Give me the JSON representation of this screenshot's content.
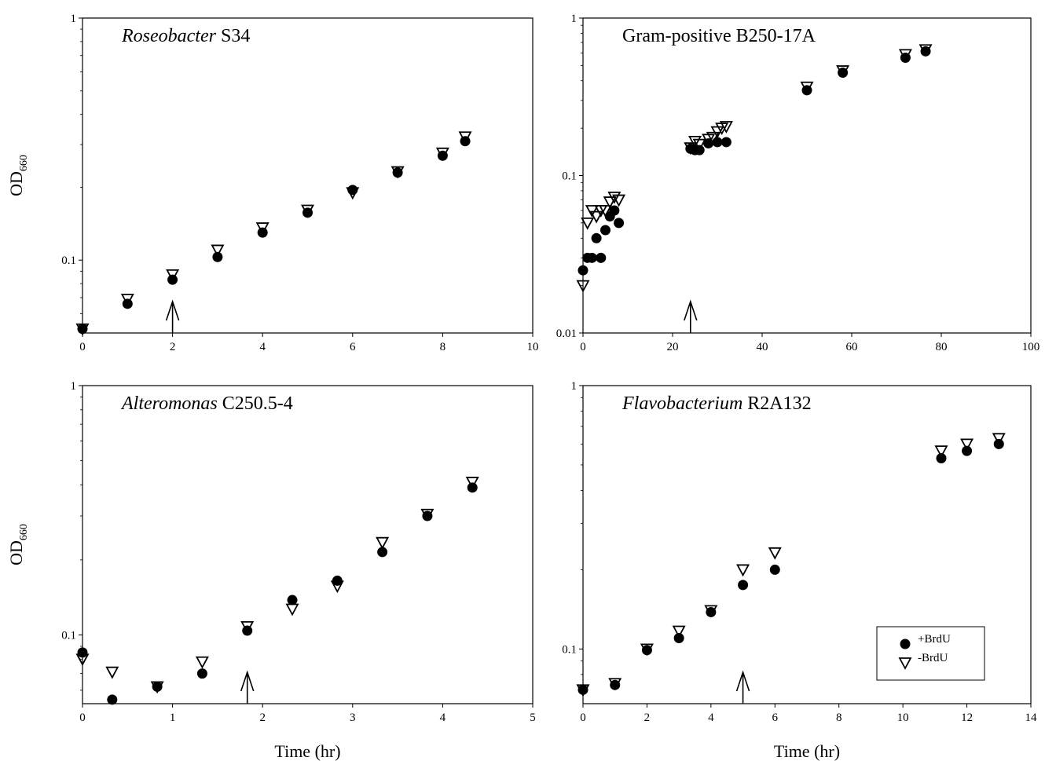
{
  "chart_data": [
    {
      "type": "scatter",
      "title_italic": "Roseobacter",
      "title_rest": " S34",
      "ylabel": "OD",
      "ylabel_sub": "660",
      "xlabel": "",
      "x_log": false,
      "y_log": true,
      "xlim": [
        0,
        10
      ],
      "ylim": [
        0.05,
        1
      ],
      "xticks": [
        "0",
        "2",
        "4",
        "6",
        "8",
        "10"
      ],
      "xtick_values": [
        0,
        2,
        4,
        6,
        8,
        10
      ],
      "yticks": [
        "0.1",
        "1"
      ],
      "ytick_values": [
        0.1,
        1
      ],
      "arrow_x": 2,
      "series": [
        {
          "marker": "circle",
          "x": [
            0,
            1,
            2,
            3,
            4,
            5,
            6,
            7,
            8,
            8.5
          ],
          "y": [
            0.052,
            0.066,
            0.083,
            0.103,
            0.13,
            0.157,
            0.195,
            0.23,
            0.27,
            0.31
          ]
        },
        {
          "marker": "triangle-down",
          "x": [
            0,
            1,
            2,
            3,
            4,
            5,
            6,
            7,
            8,
            8.5
          ],
          "y": [
            0.052,
            0.069,
            0.087,
            0.11,
            0.136,
            0.161,
            0.19,
            0.232,
            0.277,
            0.323
          ]
        }
      ]
    },
    {
      "type": "scatter",
      "title_italic": "",
      "title_rest": "Gram-positive B250-17A",
      "ylabel": "",
      "ylabel_sub": "",
      "xlabel": "",
      "x_log": false,
      "y_log": true,
      "xlim": [
        0,
        100
      ],
      "ylim": [
        0.01,
        1
      ],
      "xticks": [
        "0",
        "20",
        "40",
        "60",
        "80",
        "100"
      ],
      "xtick_values": [
        0,
        20,
        40,
        60,
        80,
        100
      ],
      "yticks": [
        "0.01",
        "0.1",
        "1"
      ],
      "ytick_values": [
        0.01,
        0.1,
        1
      ],
      "arrow_x": 24,
      "series": [
        {
          "marker": "circle",
          "x": [
            0,
            1,
            2,
            3,
            4,
            5,
            6,
            7,
            8,
            24,
            25,
            26,
            28,
            30,
            32,
            50,
            58,
            72,
            76.5
          ],
          "y": [
            0.025,
            0.03,
            0.03,
            0.04,
            0.03,
            0.045,
            0.055,
            0.06,
            0.05,
            0.148,
            0.145,
            0.145,
            0.16,
            0.163,
            0.163,
            0.348,
            0.45,
            0.56,
            0.615
          ]
        },
        {
          "marker": "triangle-down",
          "x": [
            0,
            1,
            2,
            3,
            4,
            5,
            6,
            7,
            8,
            24,
            25,
            26,
            28,
            29,
            30,
            31,
            32,
            50,
            58,
            72,
            76.5
          ],
          "y": [
            0.02,
            0.05,
            0.06,
            0.055,
            0.06,
            0.06,
            0.068,
            0.073,
            0.07,
            0.15,
            0.165,
            0.158,
            0.17,
            0.175,
            0.19,
            0.2,
            0.205,
            0.365,
            0.463,
            0.587,
            0.63
          ]
        }
      ]
    },
    {
      "type": "scatter",
      "title_italic": "Alteromonas",
      "title_rest": " C250.5-4",
      "ylabel": "OD",
      "ylabel_sub": "660",
      "xlabel": "Time (hr)",
      "x_log": false,
      "y_log": true,
      "xlim": [
        0,
        5
      ],
      "ylim": [
        0.053,
        1
      ],
      "xticks": [
        "0",
        "1",
        "2",
        "3",
        "4",
        "5"
      ],
      "xtick_values": [
        0,
        1,
        2,
        3,
        4,
        5
      ],
      "yticks": [
        "0.1",
        "1"
      ],
      "ytick_values": [
        0.1,
        1
      ],
      "arrow_x": 1.83,
      "series": [
        {
          "marker": "circle",
          "x": [
            0,
            0.33,
            0.83,
            1.33,
            1.83,
            2.33,
            2.83,
            3.33,
            3.83,
            4.33
          ],
          "y": [
            0.085,
            0.055,
            0.062,
            0.07,
            0.104,
            0.138,
            0.165,
            0.215,
            0.3,
            0.39
          ]
        },
        {
          "marker": "triangle-down",
          "x": [
            0,
            0.33,
            0.83,
            1.33,
            1.83,
            2.33,
            2.83,
            3.33,
            3.83,
            4.33
          ],
          "y": [
            0.08,
            0.071,
            0.062,
            0.078,
            0.108,
            0.127,
            0.157,
            0.235,
            0.305,
            0.41
          ]
        }
      ]
    },
    {
      "type": "scatter",
      "title_italic": "Flavobacterium",
      "title_rest": " R2A132",
      "ylabel": "",
      "ylabel_sub": "",
      "xlabel": "Time (hr)",
      "x_log": false,
      "y_log": true,
      "xlim": [
        0,
        14
      ],
      "ylim": [
        0.062,
        1
      ],
      "xticks": [
        "0",
        "2",
        "4",
        "6",
        "8",
        "10",
        "12",
        "14"
      ],
      "xtick_values": [
        0,
        2,
        4,
        6,
        8,
        10,
        12,
        14
      ],
      "yticks": [
        "0.1",
        "1"
      ],
      "ytick_values": [
        0.1,
        1
      ],
      "arrow_x": 5,
      "legend": {
        "placement": "bottom-right",
        "entries": [
          {
            "label": "+BrdU",
            "marker": "circle"
          },
          {
            "label": "-BrdU",
            "marker": "triangle-down"
          }
        ]
      },
      "series": [
        {
          "name": "+BrdU",
          "marker": "circle",
          "x": [
            0,
            1,
            2,
            3,
            4,
            5,
            6,
            11.2,
            12,
            13
          ],
          "y": [
            0.07,
            0.073,
            0.099,
            0.11,
            0.138,
            0.175,
            0.2,
            0.53,
            0.565,
            0.6
          ]
        },
        {
          "name": "-BrdU",
          "marker": "triangle-down",
          "x": [
            0,
            1,
            2,
            3,
            4,
            5,
            6,
            11.2,
            12,
            13
          ],
          "y": [
            0.07,
            0.074,
            0.1,
            0.117,
            0.14,
            0.2,
            0.232,
            0.565,
            0.6,
            0.63
          ]
        }
      ]
    }
  ]
}
